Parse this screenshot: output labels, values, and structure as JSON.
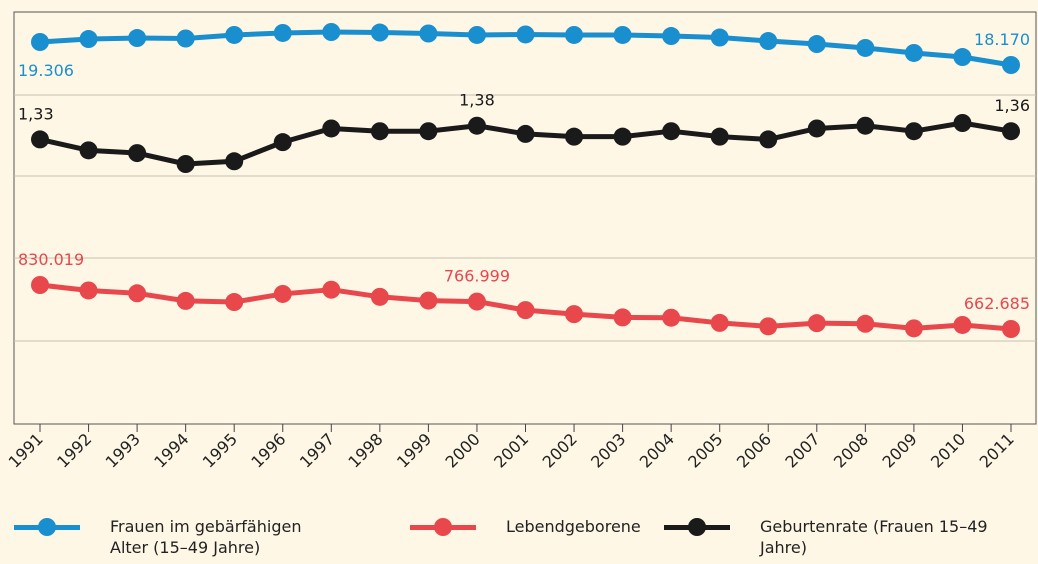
{
  "chart_data": {
    "type": "line",
    "categories": [
      "1991",
      "1992",
      "1993",
      "1994",
      "1995",
      "1996",
      "1997",
      "1998",
      "1999",
      "2000",
      "2001",
      "2002",
      "2003",
      "2004",
      "2005",
      "2006",
      "2007",
      "2008",
      "2009",
      "2010",
      "2011"
    ],
    "series": [
      {
        "name": "Frauen im gebärfähigen Alter (15–49 Jahre)",
        "color": "#1a8fd0",
        "values": [
          19306,
          19454,
          19503,
          19479,
          19652,
          19751,
          19800,
          19775,
          19726,
          19652,
          19677,
          19652,
          19652,
          19602,
          19528,
          19355,
          19207,
          19010,
          18763,
          18565,
          18170
        ],
        "value_labels": [
          "19.306",
          null,
          null,
          null,
          null,
          null,
          null,
          null,
          null,
          null,
          null,
          null,
          null,
          null,
          null,
          null,
          null,
          null,
          null,
          null,
          "18.170"
        ]
      },
      {
        "name": "Lebendgeborene",
        "color": "#e8474c",
        "values": [
          830019,
          809114,
          798447,
          769603,
          765221,
          796013,
          812173,
          785034,
          770744,
          766999,
          734475,
          719250,
          706721,
          705622,
          685795,
          672724,
          684862,
          682514,
          665126,
          677947,
          662685
        ],
        "value_labels": [
          "830.019",
          null,
          null,
          null,
          null,
          null,
          null,
          null,
          null,
          "766.999",
          null,
          null,
          null,
          null,
          null,
          null,
          null,
          null,
          null,
          null,
          "662.685"
        ]
      },
      {
        "name": "Geburtenrate (Frauen 15–49 Jahre)",
        "color": "#1a1a1a",
        "values": [
          1.33,
          1.29,
          1.28,
          1.24,
          1.25,
          1.32,
          1.37,
          1.36,
          1.36,
          1.38,
          1.35,
          1.34,
          1.34,
          1.36,
          1.34,
          1.33,
          1.37,
          1.38,
          1.36,
          1.39,
          1.36
        ],
        "value_labels": [
          "1,33",
          null,
          null,
          null,
          null,
          null,
          null,
          null,
          null,
          "1,38",
          null,
          null,
          null,
          null,
          null,
          null,
          null,
          null,
          null,
          null,
          "1,36"
        ]
      }
    ]
  }
}
